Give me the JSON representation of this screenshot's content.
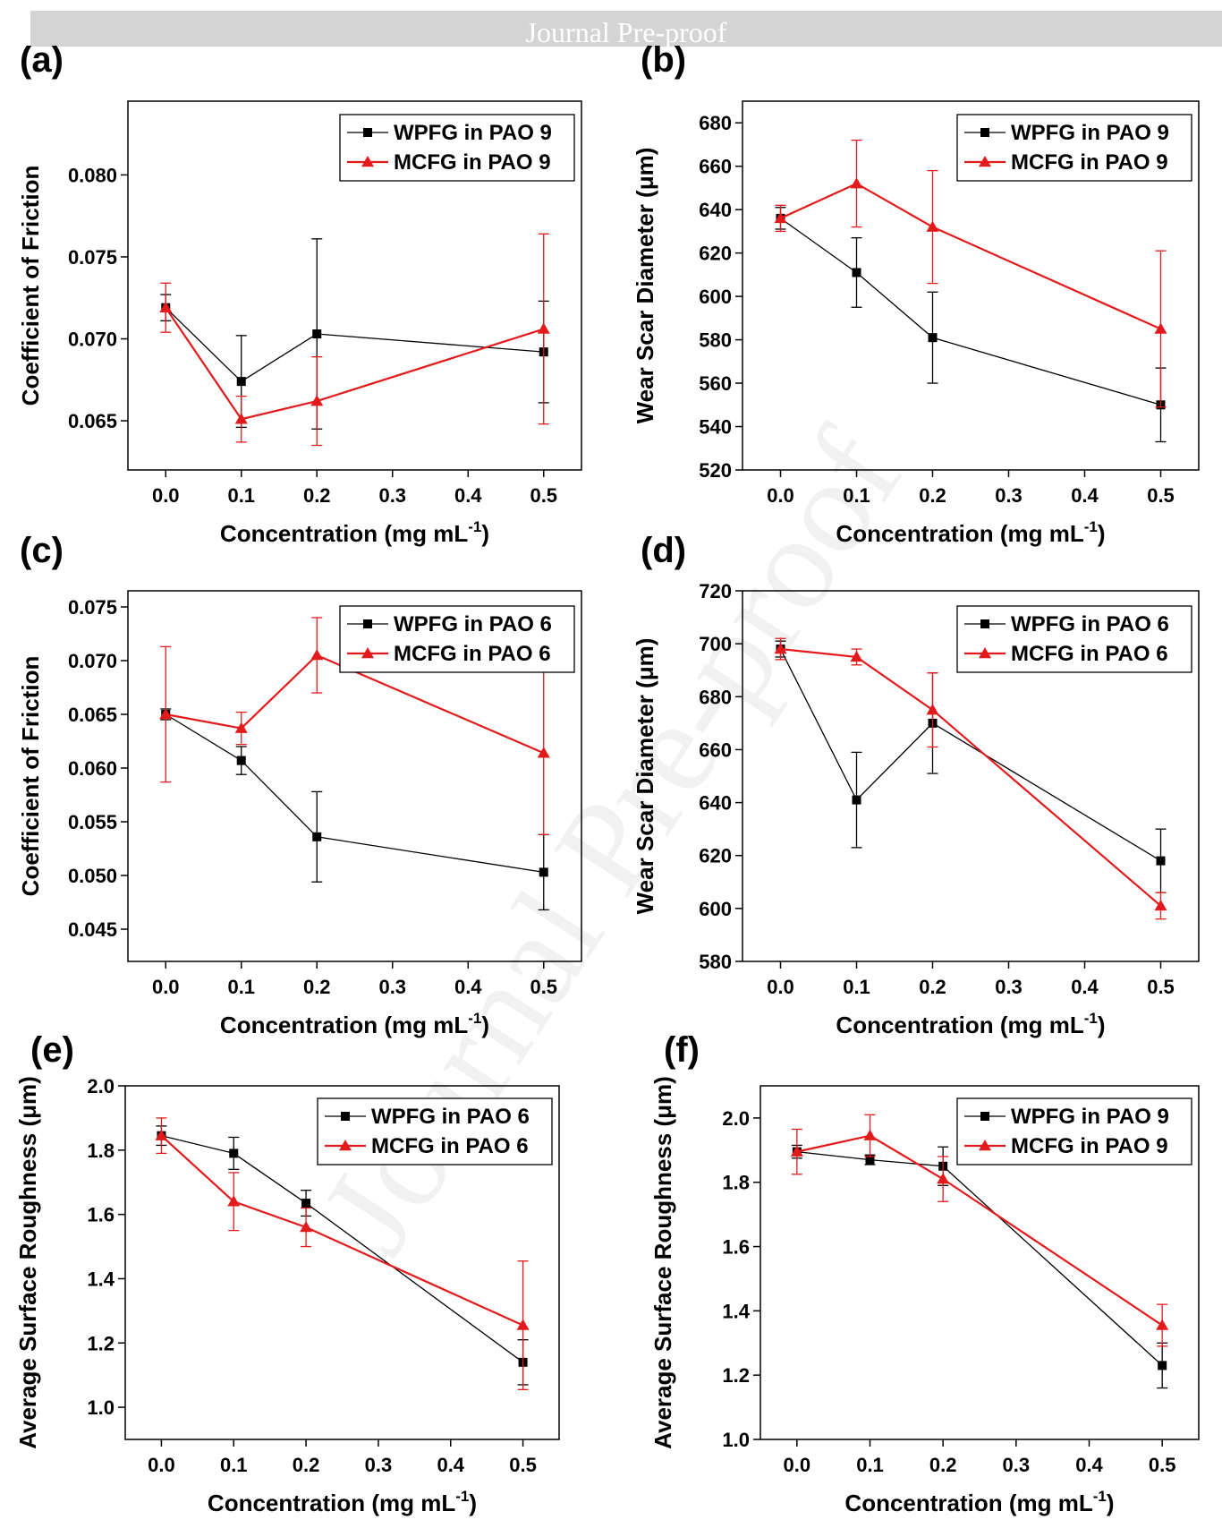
{
  "header": {
    "banner_text": "Journal Pre-proof"
  },
  "watermark_text": "Journal Pre-proof",
  "colors": {
    "series_wpfg": "#000000",
    "series_mcfg": "#e31a1c",
    "header_bg": "#d4d4d4"
  },
  "chart_data": [
    {
      "id": "a",
      "panel_label": "(a)",
      "type": "line",
      "xlabel": "Concentration (mg mL",
      "xlabel_sup": "-1",
      "xlabel_end": ")",
      "ylabel": "Coefficient of Friction",
      "xlim": [
        -0.05,
        0.55
      ],
      "ylim": [
        0.062,
        0.0845
      ],
      "xticks": [
        0.0,
        0.1,
        0.2,
        0.3,
        0.4,
        0.5
      ],
      "xtick_labels": [
        "0.0",
        "0.1",
        "0.2",
        "0.3",
        "0.4",
        "0.5"
      ],
      "yticks": [
        0.065,
        0.07,
        0.075,
        0.08
      ],
      "ytick_labels": [
        "0.065",
        "0.070",
        "0.075",
        "0.080"
      ],
      "legend": "top-right",
      "series": [
        {
          "name": "WPFG in PAO 9",
          "marker": "square",
          "color": "#000000",
          "x": [
            0.0,
            0.1,
            0.2,
            0.5
          ],
          "y": [
            0.0719,
            0.0674,
            0.0703,
            0.0692
          ],
          "err": [
            0.0008,
            0.0028,
            0.0058,
            0.0031
          ]
        },
        {
          "name": "MCFG in PAO 9",
          "marker": "triangle",
          "color": "#e31a1c",
          "x": [
            0.0,
            0.1,
            0.2,
            0.5
          ],
          "y": [
            0.0719,
            0.0651,
            0.0662,
            0.0706
          ],
          "err": [
            0.0015,
            0.0014,
            0.0027,
            0.0058
          ]
        }
      ]
    },
    {
      "id": "b",
      "panel_label": "(b)",
      "type": "line",
      "xlabel": "Concentration (mg mL",
      "xlabel_sup": "-1",
      "xlabel_end": ")",
      "ylabel": "Wear Scar Diameter (μm)",
      "xlim": [
        -0.05,
        0.55
      ],
      "ylim": [
        520,
        690
      ],
      "xticks": [
        0.0,
        0.1,
        0.2,
        0.3,
        0.4,
        0.5
      ],
      "xtick_labels": [
        "0.0",
        "0.1",
        "0.2",
        "0.3",
        "0.4",
        "0.5"
      ],
      "yticks": [
        520,
        540,
        560,
        580,
        600,
        620,
        640,
        660,
        680
      ],
      "ytick_labels": [
        "520",
        "540",
        "560",
        "580",
        "600",
        "620",
        "640",
        "660",
        "680"
      ],
      "legend": "top-right",
      "series": [
        {
          "name": "WPFG in PAO 9",
          "marker": "square",
          "color": "#000000",
          "x": [
            0.0,
            0.1,
            0.2,
            0.5
          ],
          "y": [
            636,
            611,
            581,
            550
          ],
          "err": [
            5,
            16,
            21,
            17
          ]
        },
        {
          "name": "MCFG in PAO 9",
          "marker": "triangle",
          "color": "#e31a1c",
          "x": [
            0.0,
            0.1,
            0.2,
            0.5
          ],
          "y": [
            636,
            652,
            632,
            585
          ],
          "err": [
            6,
            20,
            26,
            36
          ]
        }
      ]
    },
    {
      "id": "c",
      "panel_label": "(c)",
      "type": "line",
      "xlabel": "Concentration (mg mL",
      "xlabel_sup": "-1",
      "xlabel_end": ")",
      "ylabel": "Coefficient of Friction",
      "xlim": [
        -0.05,
        0.55
      ],
      "ylim": [
        0.042,
        0.0765
      ],
      "xticks": [
        0.0,
        0.1,
        0.2,
        0.3,
        0.4,
        0.5
      ],
      "xtick_labels": [
        "0.0",
        "0.1",
        "0.2",
        "0.3",
        "0.4",
        "0.5"
      ],
      "yticks": [
        0.045,
        0.05,
        0.055,
        0.06,
        0.065,
        0.07,
        0.075
      ],
      "ytick_labels": [
        "0.045",
        "0.050",
        "0.055",
        "0.060",
        "0.065",
        "0.070",
        "0.075"
      ],
      "legend": "top-right",
      "series": [
        {
          "name": "WPFG in PAO 6",
          "marker": "square",
          "color": "#000000",
          "x": [
            0.0,
            0.1,
            0.2,
            0.5
          ],
          "y": [
            0.065,
            0.0607,
            0.0536,
            0.0503
          ],
          "err": [
            0.0005,
            0.0013,
            0.0042,
            0.0035
          ]
        },
        {
          "name": "MCFG in PAO 6",
          "marker": "triangle",
          "color": "#e31a1c",
          "x": [
            0.0,
            0.1,
            0.2,
            0.5
          ],
          "y": [
            0.065,
            0.0637,
            0.0705,
            0.0614
          ],
          "err": [
            0.0063,
            0.0015,
            0.0035,
            0.0076
          ]
        }
      ]
    },
    {
      "id": "d",
      "panel_label": "(d)",
      "type": "line",
      "xlabel": "Concentration (mg mL",
      "xlabel_sup": "-1",
      "xlabel_end": ")",
      "ylabel": "Wear Scar Diameter (μm)",
      "xlim": [
        -0.05,
        0.55
      ],
      "ylim": [
        580,
        720
      ],
      "xticks": [
        0.0,
        0.1,
        0.2,
        0.3,
        0.4,
        0.5
      ],
      "xtick_labels": [
        "0.0",
        "0.1",
        "0.2",
        "0.3",
        "0.4",
        "0.5"
      ],
      "yticks": [
        580,
        600,
        620,
        640,
        660,
        680,
        700,
        720
      ],
      "ytick_labels": [
        "580",
        "600",
        "620",
        "640",
        "660",
        "680",
        "700",
        "720"
      ],
      "legend": "top-right",
      "series": [
        {
          "name": "WPFG in PAO 6",
          "marker": "square",
          "color": "#000000",
          "x": [
            0.0,
            0.1,
            0.2,
            0.5
          ],
          "y": [
            698,
            641,
            670,
            618
          ],
          "err": [
            3,
            18,
            19,
            12
          ]
        },
        {
          "name": "MCFG in PAO 6",
          "marker": "triangle",
          "color": "#e31a1c",
          "x": [
            0.0,
            0.1,
            0.2,
            0.5
          ],
          "y": [
            698,
            695,
            675,
            601
          ],
          "err": [
            4,
            3,
            14,
            5
          ]
        }
      ]
    },
    {
      "id": "e",
      "panel_label": "(e)",
      "type": "line",
      "xlabel": "Concentration (mg mL",
      "xlabel_sup": "-1",
      "xlabel_end": ")",
      "ylabel": "Average Surface Roughness (μm)",
      "xlim": [
        -0.05,
        0.55
      ],
      "ylim": [
        0.9,
        2.0
      ],
      "xticks": [
        0.0,
        0.1,
        0.2,
        0.3,
        0.4,
        0.5
      ],
      "xtick_labels": [
        "0.0",
        "0.1",
        "0.2",
        "0.3",
        "0.4",
        "0.5"
      ],
      "yticks": [
        1.0,
        1.2,
        1.4,
        1.6,
        1.8,
        2.0
      ],
      "ytick_labels": [
        "1.0",
        "1.2",
        "1.4",
        "1.6",
        "1.8",
        "2.0"
      ],
      "legend": "top-right",
      "series": [
        {
          "name": "WPFG in PAO 6",
          "marker": "square",
          "color": "#000000",
          "x": [
            0.0,
            0.1,
            0.2,
            0.5
          ],
          "y": [
            1.845,
            1.79,
            1.635,
            1.14
          ],
          "err": [
            0.03,
            0.05,
            0.04,
            0.07
          ]
        },
        {
          "name": "MCFG in PAO 6",
          "marker": "triangle",
          "color": "#e31a1c",
          "x": [
            0.0,
            0.1,
            0.2,
            0.5
          ],
          "y": [
            1.845,
            1.64,
            1.56,
            1.255
          ],
          "err": [
            0.055,
            0.09,
            0.06,
            0.2
          ]
        }
      ]
    },
    {
      "id": "f",
      "panel_label": "(f)",
      "type": "line",
      "xlabel": "Concentration (mg mL",
      "xlabel_sup": "-1",
      "xlabel_end": ")",
      "ylabel": "Average Surface Roughness (μm)",
      "xlim": [
        -0.05,
        0.55
      ],
      "ylim": [
        1.0,
        2.1
      ],
      "xticks": [
        0.0,
        0.1,
        0.2,
        0.3,
        0.4,
        0.5
      ],
      "xtick_labels": [
        "0.0",
        "0.1",
        "0.2",
        "0.3",
        "0.4",
        "0.5"
      ],
      "yticks": [
        1.0,
        1.2,
        1.4,
        1.6,
        1.8,
        2.0
      ],
      "ytick_labels": [
        "1.0",
        "1.2",
        "1.4",
        "1.6",
        "1.8",
        "2.0"
      ],
      "legend": "top-right",
      "series": [
        {
          "name": "WPFG in PAO 9",
          "marker": "square",
          "color": "#000000",
          "x": [
            0.0,
            0.1,
            0.2,
            0.5
          ],
          "y": [
            1.895,
            1.87,
            1.85,
            1.23
          ],
          "err": [
            0.02,
            0.015,
            0.06,
            0.07
          ]
        },
        {
          "name": "MCFG in PAO 9",
          "marker": "triangle",
          "color": "#e31a1c",
          "x": [
            0.0,
            0.1,
            0.2,
            0.5
          ],
          "y": [
            1.895,
            1.945,
            1.81,
            1.355
          ],
          "err": [
            0.07,
            0.065,
            0.07,
            0.065
          ]
        }
      ]
    }
  ]
}
